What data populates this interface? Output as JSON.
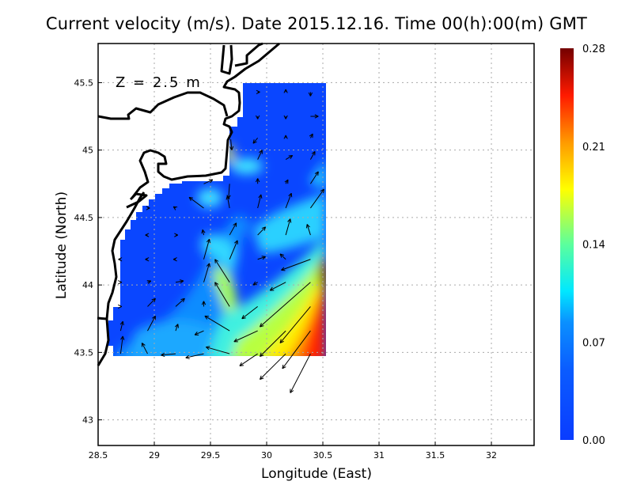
{
  "title": "Current velocity (m/s). Date 2015.12.16. Time 00(h):00(m) GMT",
  "depth_label": "Z = 2.5 m",
  "chart_data": {
    "type": "vector-field",
    "title": "Current velocity (m/s). Date 2015.12.16. Time 00(h):00(m) GMT",
    "xlabel": "Longitude (East)",
    "ylabel": "Latitude (North)",
    "xlim": [
      28.5,
      32.38
    ],
    "ylim": [
      42.81,
      45.79
    ],
    "xticks": [
      "28.5",
      "29",
      "29.5",
      "30",
      "30.5",
      "31",
      "31.5",
      "32"
    ],
    "yticks": [
      "45.5",
      "45",
      "44.5",
      "44",
      "43.5",
      "43"
    ],
    "grid": true,
    "colorbar": {
      "label_ticks": [
        "0.28",
        "0.21",
        "0.14",
        "0.07",
        "0.00"
      ],
      "range": [
        0,
        0.28
      ],
      "colors": [
        "#0a3cff",
        "#0a78ff",
        "#00e8ff",
        "#5cff9c",
        "#ffff00",
        "#ff9a00",
        "#ff1a00",
        "#740000"
      ]
    },
    "vectors_note": "lon, lat, u, v (arrow displacement in degrees)",
    "vectors": [
      [
        29.92,
        45.43,
        0.02,
        0
      ],
      [
        30.17,
        45.43,
        0,
        0.02
      ],
      [
        30.39,
        45.43,
        0,
        -0.03
      ],
      [
        29.92,
        45.25,
        0,
        -0.02
      ],
      [
        30.17,
        45.25,
        0,
        -0.02
      ],
      [
        30.39,
        45.25,
        0.07,
        0
      ],
      [
        29.92,
        45.09,
        -0.04,
        -0.04
      ],
      [
        30.17,
        45.09,
        0,
        0.02
      ],
      [
        30.39,
        45.09,
        0.02,
        0.03
      ],
      [
        29.68,
        45.08,
        0.01,
        -0.08
      ],
      [
        29.92,
        44.93,
        0.04,
        0.07
      ],
      [
        30.17,
        44.93,
        0.06,
        0.03
      ],
      [
        30.39,
        44.93,
        0.04,
        0.06
      ],
      [
        29.44,
        44.75,
        0.08,
        0.03
      ],
      [
        29.67,
        44.75,
        -0.01,
        -0.11
      ],
      [
        29.92,
        44.75,
        0,
        0.04
      ],
      [
        30.17,
        44.75,
        0.02,
        0.03
      ],
      [
        30.39,
        44.75,
        0.07,
        0.09
      ],
      [
        28.94,
        44.57,
        0.02,
        0
      ],
      [
        29.19,
        44.57,
        -0.02,
        0.01
      ],
      [
        29.44,
        44.57,
        -0.13,
        0.08
      ],
      [
        29.67,
        44.57,
        -0.02,
        0.09
      ],
      [
        29.92,
        44.57,
        0.03,
        0.1
      ],
      [
        30.17,
        44.57,
        0.05,
        0.11
      ],
      [
        30.39,
        44.57,
        0.12,
        0.14
      ],
      [
        28.94,
        44.37,
        -0.02,
        0
      ],
      [
        29.19,
        44.37,
        0.02,
        0
      ],
      [
        29.44,
        44.37,
        -0.01,
        0.04
      ],
      [
        29.67,
        44.37,
        0.06,
        0.09
      ],
      [
        29.92,
        44.37,
        0.07,
        0.06
      ],
      [
        30.17,
        44.37,
        0.04,
        0.12
      ],
      [
        30.39,
        44.37,
        -0.03,
        0.08
      ],
      [
        28.7,
        44.19,
        -0.02,
        0
      ],
      [
        28.94,
        44.19,
        -0.02,
        0
      ],
      [
        29.19,
        44.19,
        -0.02,
        0
      ],
      [
        29.44,
        44.19,
        0.05,
        0.15
      ],
      [
        29.67,
        44.19,
        0.07,
        0.14
      ],
      [
        29.92,
        44.19,
        0.07,
        0.02
      ],
      [
        30.17,
        44.19,
        -0.05,
        0.04
      ],
      [
        30.39,
        44.19,
        -0.26,
        -0.08
      ],
      [
        28.7,
        44.02,
        0.01,
        0
      ],
      [
        28.94,
        44.02,
        0.03,
        0.01
      ],
      [
        29.19,
        44.02,
        0.07,
        0.01
      ],
      [
        29.44,
        44.02,
        0.05,
        0.14
      ],
      [
        29.67,
        44.02,
        -0.13,
        0.17
      ],
      [
        29.92,
        44.02,
        -0.04,
        -0.02
      ],
      [
        30.17,
        44.02,
        -0.14,
        -0.06
      ],
      [
        30.39,
        44.02,
        -0.45,
        -0.33
      ],
      [
        28.7,
        43.84,
        0.01,
        0
      ],
      [
        28.94,
        43.84,
        0.07,
        0.06
      ],
      [
        29.19,
        43.84,
        0.08,
        0.06
      ],
      [
        29.44,
        43.84,
        0,
        0.04
      ],
      [
        29.67,
        43.84,
        -0.13,
        0.18
      ],
      [
        29.92,
        43.84,
        -0.14,
        -0.09
      ],
      [
        30.39,
        43.84,
        -0.27,
        -0.27
      ],
      [
        28.7,
        43.66,
        0.02,
        0.07
      ],
      [
        28.94,
        43.66,
        0.07,
        0.11
      ],
      [
        29.19,
        43.66,
        0.02,
        0.05
      ],
      [
        29.44,
        43.66,
        -0.08,
        -0.03
      ],
      [
        29.67,
        43.66,
        -0.22,
        0.11
      ],
      [
        29.92,
        43.66,
        -0.21,
        -0.08
      ],
      [
        30.17,
        43.66,
        -0.23,
        -0.19
      ],
      [
        30.39,
        43.66,
        -0.25,
        -0.28
      ],
      [
        28.7,
        43.49,
        0.02,
        0.13
      ],
      [
        28.94,
        43.49,
        -0.05,
        0.08
      ],
      [
        29.19,
        43.49,
        -0.13,
        -0.01
      ],
      [
        29.44,
        43.49,
        -0.16,
        -0.03
      ],
      [
        29.67,
        43.49,
        -0.21,
        0.05
      ],
      [
        29.92,
        43.49,
        -0.16,
        -0.09
      ],
      [
        30.17,
        43.49,
        -0.23,
        -0.19
      ],
      [
        30.39,
        43.49,
        -0.18,
        -0.29
      ]
    ]
  }
}
